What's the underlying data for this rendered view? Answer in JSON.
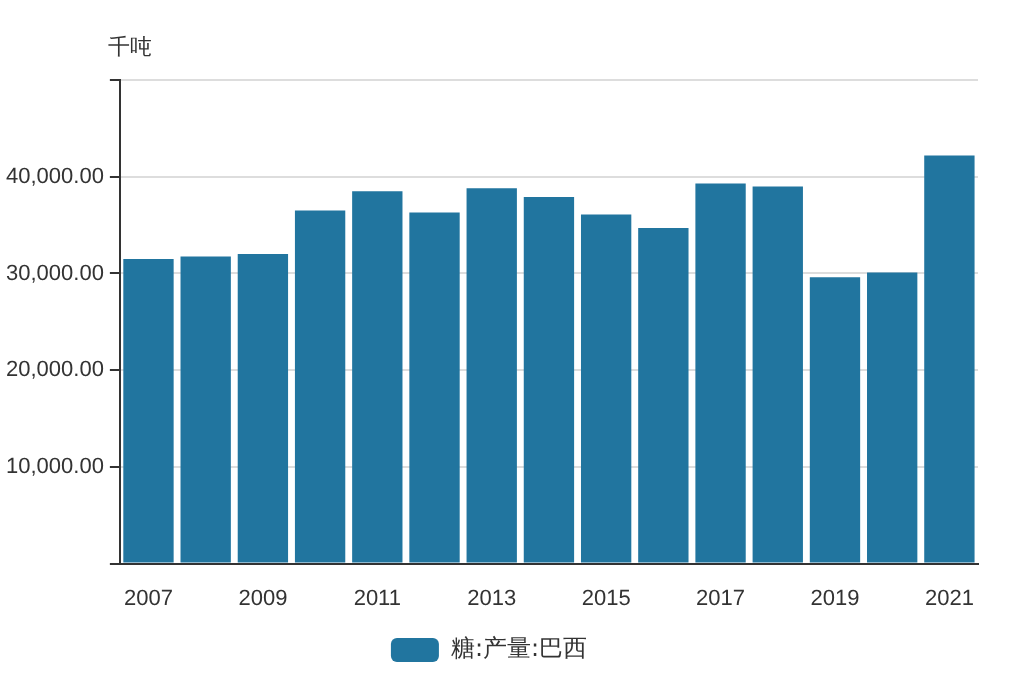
{
  "chart_data": {
    "type": "bar",
    "ylabel": "千吨",
    "categories": [
      "2007",
      null,
      "2009",
      null,
      "2011",
      null,
      "2013",
      null,
      "2015",
      null,
      "2017",
      null,
      "2019",
      null,
      "2021"
    ],
    "series": [
      {
        "name": "糖:产量:巴西",
        "color": "#21759f",
        "values": [
          31500,
          31750,
          32000,
          36500,
          38500,
          36300,
          38800,
          37900,
          36100,
          34700,
          39300,
          39000,
          29600,
          30100,
          42200
        ]
      }
    ],
    "ylim": [
      0,
      50000
    ],
    "yticks": [
      {
        "value": 0,
        "label": null
      },
      {
        "value": 10000,
        "label": "10,000.00"
      },
      {
        "value": 20000,
        "label": "20,000.00"
      },
      {
        "value": 30000,
        "label": "30,000.00"
      },
      {
        "value": 40000,
        "label": "40,000.00"
      },
      {
        "value": 50000,
        "label": null
      }
    ],
    "grid": "y",
    "legend": "bottom"
  }
}
